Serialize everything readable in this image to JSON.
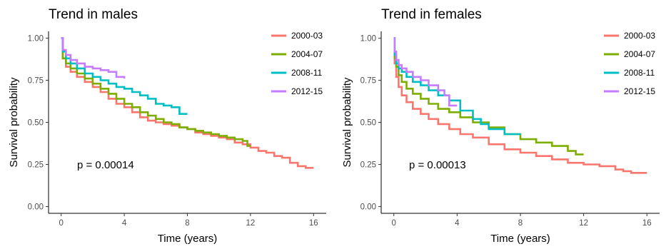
{
  "chart_data": [
    {
      "type": "line",
      "title": "Trend in males",
      "xlabel": "Time (years)",
      "ylabel": "Survival probability",
      "xlim": [
        -0.8,
        16.8
      ],
      "ylim": [
        -0.04,
        1.04
      ],
      "x_ticks": [
        0,
        4,
        8,
        12,
        16
      ],
      "x_tick_labels": [
        "0",
        "4",
        "8",
        "12",
        "16"
      ],
      "y_ticks": [
        0,
        0.25,
        0.5,
        0.75,
        1.0
      ],
      "y_tick_labels": [
        "0.00",
        "0.25",
        "0.50",
        "0.75",
        "1.00"
      ],
      "grid": false,
      "legend_position": "top-right",
      "annotation": "p = 0.00014",
      "series": [
        {
          "name": "2000-03",
          "color": "#F8766D",
          "x": [
            0,
            0.1,
            0.3,
            0.6,
            1,
            1.5,
            2,
            2.5,
            3,
            3.5,
            4,
            4.5,
            5,
            5.5,
            6,
            6.5,
            7,
            7.5,
            8,
            8.5,
            9,
            9.5,
            10,
            10.5,
            11,
            11.5,
            12,
            12.5,
            13,
            13.5,
            14,
            14.5,
            15,
            15.5,
            16
          ],
          "y": [
            1.0,
            0.88,
            0.83,
            0.8,
            0.77,
            0.74,
            0.71,
            0.68,
            0.64,
            0.61,
            0.59,
            0.56,
            0.53,
            0.51,
            0.5,
            0.49,
            0.48,
            0.47,
            0.46,
            0.44,
            0.43,
            0.42,
            0.41,
            0.4,
            0.38,
            0.37,
            0.35,
            0.33,
            0.32,
            0.3,
            0.29,
            0.26,
            0.24,
            0.23,
            0.23
          ]
        },
        {
          "name": "2004-07",
          "color": "#7CAE00",
          "x": [
            0,
            0.1,
            0.3,
            0.6,
            1,
            1.5,
            2,
            2.5,
            3,
            3.5,
            4,
            4.5,
            5,
            5.5,
            6,
            6.5,
            7,
            7.5,
            8,
            8.5,
            9,
            9.5,
            10,
            10.5,
            11,
            11.5,
            11.8,
            12
          ],
          "y": [
            1.0,
            0.88,
            0.85,
            0.82,
            0.79,
            0.76,
            0.73,
            0.7,
            0.67,
            0.64,
            0.61,
            0.59,
            0.56,
            0.54,
            0.52,
            0.5,
            0.49,
            0.47,
            0.46,
            0.45,
            0.44,
            0.43,
            0.42,
            0.41,
            0.4,
            0.39,
            0.36,
            0.36
          ]
        },
        {
          "name": "2008-11",
          "color": "#00BFC4",
          "x": [
            0,
            0.1,
            0.3,
            0.6,
            1,
            1.5,
            2,
            2.5,
            3,
            3.5,
            4,
            4.5,
            5,
            5.5,
            6,
            6.5,
            7,
            7.5,
            8
          ],
          "y": [
            1.0,
            0.92,
            0.88,
            0.85,
            0.82,
            0.79,
            0.77,
            0.75,
            0.73,
            0.71,
            0.7,
            0.68,
            0.66,
            0.64,
            0.61,
            0.6,
            0.59,
            0.55,
            0.55
          ]
        },
        {
          "name": "2012-15",
          "color": "#C77CFF",
          "x": [
            0,
            0.1,
            0.3,
            0.6,
            1,
            1.5,
            2,
            2.5,
            3,
            3.5,
            4
          ],
          "y": [
            1.0,
            0.93,
            0.9,
            0.87,
            0.85,
            0.83,
            0.82,
            0.81,
            0.8,
            0.77,
            0.76
          ]
        }
      ]
    },
    {
      "type": "line",
      "title": "Trend in females",
      "xlabel": "Time (years)",
      "ylabel": "Survival probability",
      "xlim": [
        -0.8,
        16.8
      ],
      "ylim": [
        -0.04,
        1.04
      ],
      "x_ticks": [
        0,
        4,
        8,
        12,
        16
      ],
      "x_tick_labels": [
        "0",
        "4",
        "8",
        "12",
        "16"
      ],
      "y_ticks": [
        0,
        0.25,
        0.5,
        0.75,
        1.0
      ],
      "y_tick_labels": [
        "0.00",
        "0.25",
        "0.50",
        "0.75",
        "1.00"
      ],
      "grid": false,
      "legend_position": "top-right",
      "annotation": "p = 0.00013",
      "series": [
        {
          "name": "2000-03",
          "color": "#F8766D",
          "x": [
            0,
            0.05,
            0.15,
            0.3,
            0.5,
            0.8,
            1.2,
            1.7,
            2.2,
            2.8,
            3.5,
            4.2,
            5,
            6,
            7,
            8,
            9,
            10,
            11,
            12,
            13,
            14,
            14.5,
            15,
            16
          ],
          "y": [
            1.0,
            0.85,
            0.77,
            0.71,
            0.66,
            0.62,
            0.58,
            0.55,
            0.52,
            0.49,
            0.46,
            0.43,
            0.41,
            0.37,
            0.34,
            0.32,
            0.3,
            0.28,
            0.26,
            0.25,
            0.24,
            0.22,
            0.21,
            0.2,
            0.2
          ]
        },
        {
          "name": "2004-07",
          "color": "#7CAE00",
          "x": [
            0,
            0.05,
            0.15,
            0.3,
            0.5,
            0.8,
            1.2,
            1.7,
            2.2,
            2.8,
            3.5,
            4.2,
            5,
            6,
            7,
            8,
            9,
            10,
            11,
            11.5,
            12
          ],
          "y": [
            1.0,
            0.88,
            0.83,
            0.78,
            0.74,
            0.7,
            0.67,
            0.64,
            0.61,
            0.58,
            0.56,
            0.53,
            0.5,
            0.47,
            0.43,
            0.4,
            0.38,
            0.36,
            0.33,
            0.31,
            0.31
          ]
        },
        {
          "name": "2008-11",
          "color": "#00BFC4",
          "x": [
            0,
            0.05,
            0.15,
            0.3,
            0.5,
            0.8,
            1.2,
            1.7,
            2.2,
            2.8,
            3.5,
            4.2,
            5,
            5.5,
            6,
            6.5,
            7,
            8
          ],
          "y": [
            1.0,
            0.9,
            0.85,
            0.82,
            0.8,
            0.77,
            0.74,
            0.72,
            0.69,
            0.66,
            0.63,
            0.57,
            0.52,
            0.49,
            0.46,
            0.46,
            0.43,
            0.43
          ]
        },
        {
          "name": "2012-15",
          "color": "#C77CFF",
          "x": [
            0,
            0.05,
            0.15,
            0.3,
            0.5,
            0.8,
            1.2,
            1.7,
            2.2,
            2.8,
            3.2,
            3.5,
            4
          ],
          "y": [
            1.0,
            0.92,
            0.87,
            0.84,
            0.82,
            0.8,
            0.77,
            0.75,
            0.72,
            0.69,
            0.66,
            0.6,
            0.6
          ]
        }
      ]
    }
  ]
}
